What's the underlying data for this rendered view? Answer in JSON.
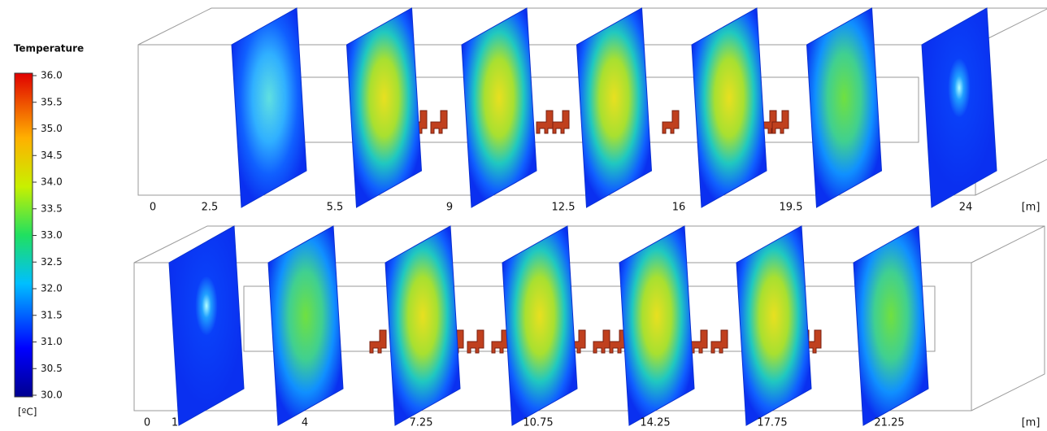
{
  "legend": {
    "title": "Temperature",
    "ticks": [
      "36.0",
      "35.5",
      "35.0",
      "34.5",
      "34.0",
      "33.5",
      "33.0",
      "32.5",
      "32.0",
      "31.5",
      "31.0",
      "30.5",
      "30.0"
    ],
    "unit": "[ºC]"
  },
  "panels": [
    {
      "ticks": [
        "0",
        "2.5",
        "5.5",
        "9",
        "12.5",
        "16",
        "19.5",
        "24"
      ],
      "unit": "[m]"
    },
    {
      "ticks": [
        "0",
        "1",
        "4",
        "7.25",
        "10.75",
        "14.25",
        "17.75",
        "21.25"
      ],
      "unit": "[m]"
    }
  ]
}
